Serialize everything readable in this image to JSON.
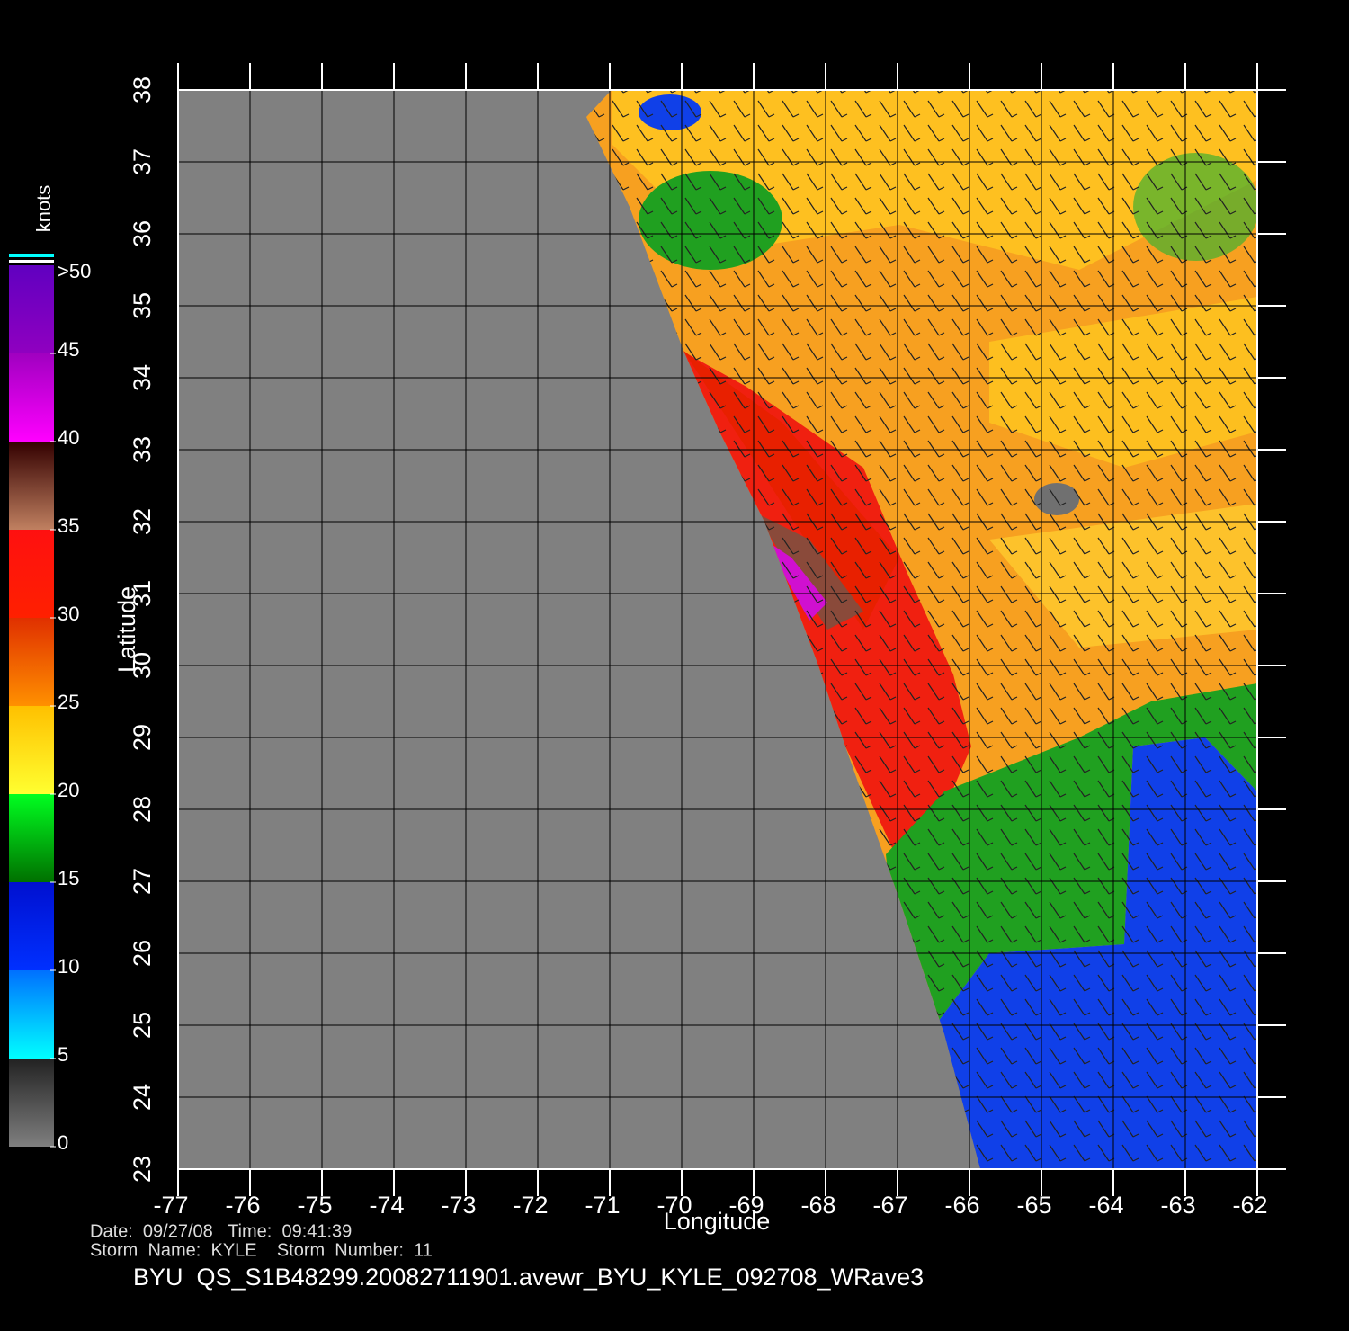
{
  "map": {
    "x_label": "Longitude",
    "y_label": "Latitude",
    "lon_ticks": [
      -77,
      -76,
      -75,
      -74,
      -73,
      -72,
      -71,
      -70,
      -69,
      -68,
      -67,
      -66,
      -65,
      -64,
      -63,
      -62
    ],
    "lat_ticks": [
      23,
      24,
      25,
      26,
      27,
      28,
      29,
      30,
      31,
      32,
      33,
      34,
      35,
      36,
      37,
      38
    ]
  },
  "colorbar": {
    "unit": "knots",
    "ticks": [
      0,
      5,
      10,
      15,
      20,
      25,
      30,
      35,
      40,
      45
    ],
    "top_label": ">50"
  },
  "info": {
    "date_line": "Date:  09/27/08   Time:  09:41:39",
    "storm_line": "Storm  Name:  KYLE    Storm  Number:  11"
  },
  "title": "BYU  QS_S1B48299.20082711901.avewr_BYU_KYLE_092708_WRave3"
}
